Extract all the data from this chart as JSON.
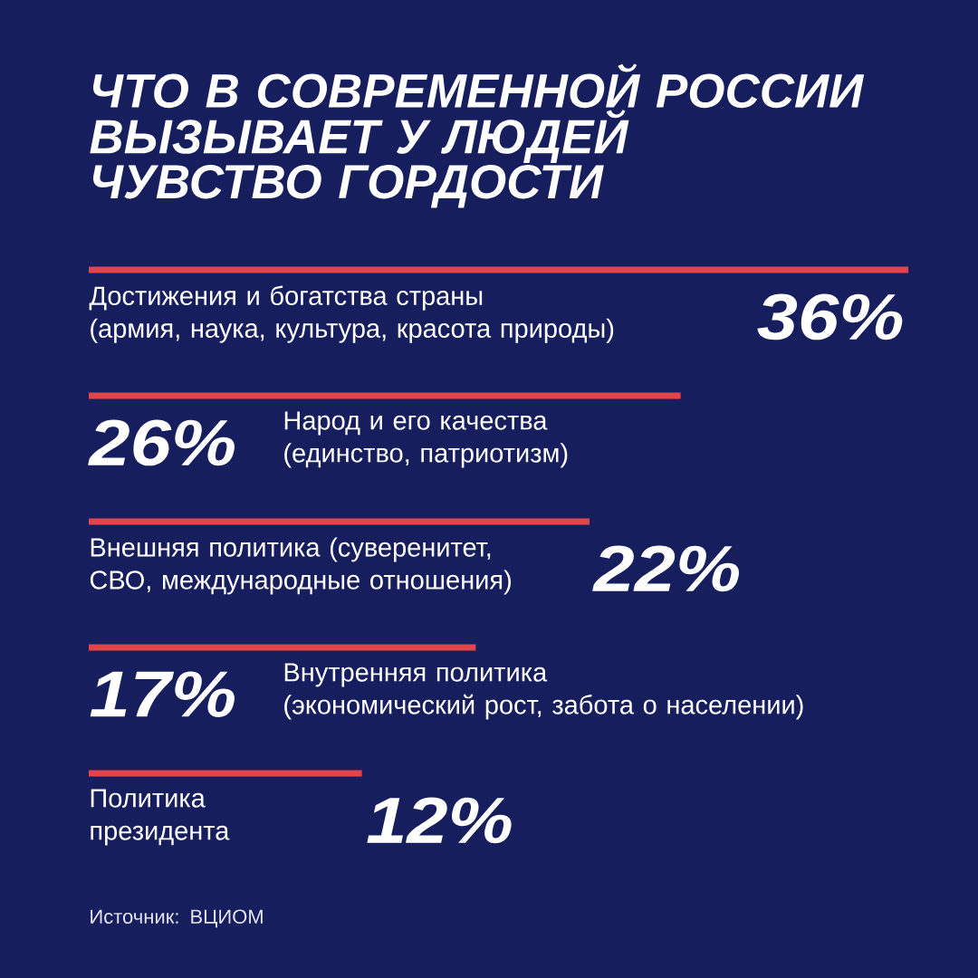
{
  "chart_data": {
    "type": "bar",
    "orientation": "horizontal",
    "title": "ЧТО В СОВРЕМЕННОЙ РОССИИ\nВЫЗЫВАЕТ У ЛЮДЕЙ\nЧУВСТВО ГОРДОСТИ",
    "categories": [
      "Достижения и богатства страны\n(армия, наука, культура, красота природы)",
      "Народ и его качества\n(единство, патриотизм)",
      "Внешняя политика (суверенитет,\nСВО, международные отношения)",
      "Внутренняя политика\n(экономический рост, забота о населении)",
      "Политика\nпрезидента"
    ],
    "values": [
      36,
      26,
      22,
      17,
      12
    ],
    "color": "#e2444c",
    "value_labels": [
      "36%",
      "26%",
      "22%",
      "17%",
      "12%"
    ],
    "xlim": [
      0,
      36
    ],
    "annotations": [
      "Источник: ВЦИОМ"
    ]
  }
}
